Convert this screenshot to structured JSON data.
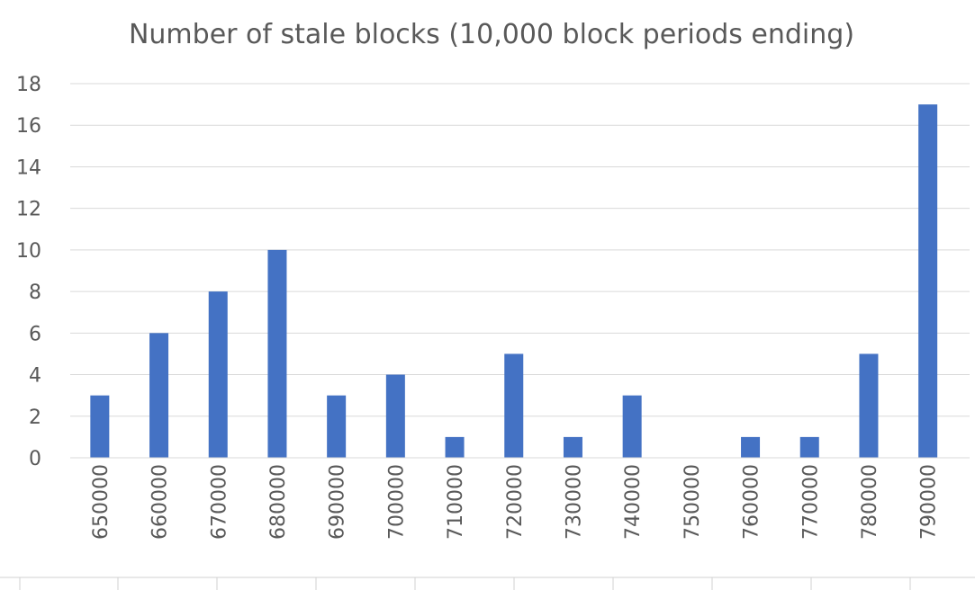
{
  "chart_data": {
    "type": "bar",
    "title": "Number of stale blocks (10,000 block periods ending)",
    "xlabel": "",
    "ylabel": "",
    "categories": [
      "650000",
      "660000",
      "670000",
      "680000",
      "690000",
      "700000",
      "710000",
      "720000",
      "730000",
      "740000",
      "750000",
      "760000",
      "770000",
      "780000",
      "790000"
    ],
    "values": [
      3,
      6,
      8,
      10,
      3,
      4,
      1,
      5,
      1,
      3,
      0,
      1,
      1,
      5,
      17
    ],
    "ylim": [
      0,
      18
    ],
    "yticks": [
      "0",
      "2",
      "4",
      "6",
      "8",
      "10",
      "12",
      "14",
      "16",
      "18"
    ],
    "grid": true,
    "legend": "none",
    "bar_color": "#4472C4",
    "grid_color": "#D9D9D9",
    "text_color": "#595959"
  }
}
